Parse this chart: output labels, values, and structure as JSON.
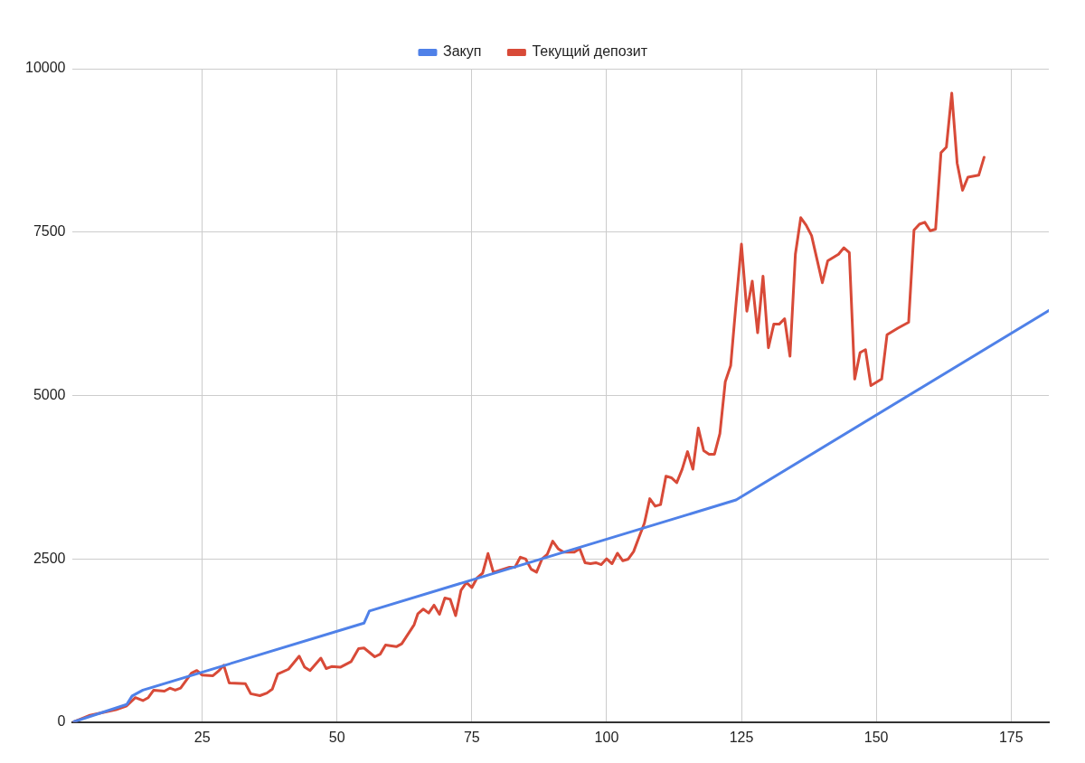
{
  "chart_data": {
    "type": "line",
    "legend": "top",
    "grid": true,
    "marker": "none",
    "line_style": "solid",
    "xlim": [
      1,
      182
    ],
    "xticks": [
      25,
      50,
      75,
      100,
      125,
      150,
      175
    ],
    "ylim": [
      0,
      10000
    ],
    "yticks": [
      0,
      2500,
      5000,
      7500,
      10000
    ],
    "series": [
      {
        "name": "Закуп",
        "color": "#4f81e8",
        "x": [
          1,
          11,
          12,
          14,
          55,
          56,
          124,
          182
        ],
        "values": [
          0,
          270,
          400,
          490,
          1515,
          1700,
          3400,
          6300
        ]
      },
      {
        "name": "Текущий депозит",
        "color": "#d84a38",
        "x": [
          1,
          4,
          9,
          11,
          12.6,
          14,
          15,
          16,
          18,
          19,
          20,
          21,
          23,
          24,
          25,
          27,
          28,
          29,
          30,
          33,
          34,
          35.7,
          37,
          38,
          39,
          41,
          42,
          43,
          44,
          45,
          47,
          48,
          49,
          50.6,
          52.6,
          54,
          55,
          57,
          58,
          59,
          61,
          62,
          64.3,
          65,
          66,
          67,
          68,
          69,
          70,
          71,
          72,
          73,
          74,
          75,
          76,
          77,
          78,
          79,
          82,
          83,
          84,
          85,
          86,
          87,
          88,
          89,
          90,
          91,
          92,
          94,
          95,
          96,
          97,
          98,
          99,
          100,
          101,
          102,
          103,
          104,
          105,
          106,
          107,
          108,
          109,
          110,
          111,
          112,
          113,
          114,
          115,
          116,
          117,
          118,
          119,
          120,
          121,
          122,
          123,
          124,
          125,
          126,
          127,
          128,
          129,
          130,
          131,
          132,
          133,
          134,
          135,
          136,
          137,
          138,
          139,
          140,
          141,
          143,
          144,
          145,
          146,
          147,
          148,
          149,
          151,
          152,
          154,
          156,
          157,
          158,
          159,
          160,
          161,
          162,
          163,
          164,
          165,
          166,
          167,
          169,
          170
        ],
        "values": [
          0,
          100,
          190,
          250,
          375,
          330,
          375,
          490,
          475,
          520,
          490,
          520,
          750,
          790,
          720,
          710,
          780,
          870,
          600,
          590,
          435,
          405,
          445,
          505,
          735,
          810,
          910,
          1010,
          840,
          790,
          980,
          820,
          850,
          840,
          925,
          1125,
          1135,
          1000,
          1040,
          1180,
          1155,
          1200,
          1490,
          1660,
          1730,
          1670,
          1790,
          1650,
          1900,
          1880,
          1630,
          2020,
          2135,
          2060,
          2210,
          2280,
          2580,
          2290,
          2370,
          2370,
          2525,
          2495,
          2340,
          2295,
          2495,
          2570,
          2770,
          2655,
          2600,
          2600,
          2655,
          2440,
          2425,
          2440,
          2410,
          2500,
          2425,
          2585,
          2470,
          2495,
          2610,
          2830,
          3045,
          3420,
          3305,
          3330,
          3765,
          3740,
          3665,
          3870,
          4140,
          3870,
          4500,
          4155,
          4100,
          4100,
          4415,
          5210,
          5455,
          6410,
          7315,
          6290,
          6750,
          5960,
          6825,
          5730,
          6090,
          6090,
          6175,
          5600,
          7160,
          7720,
          7605,
          7445,
          7085,
          6725,
          7060,
          7160,
          7260,
          7185,
          5250,
          5655,
          5700,
          5150,
          5250,
          5930,
          6030,
          6120,
          7530,
          7620,
          7650,
          7520,
          7545,
          8715,
          8800,
          9625,
          8555,
          8140,
          8340,
          8370,
          8645
        ]
      }
    ]
  }
}
